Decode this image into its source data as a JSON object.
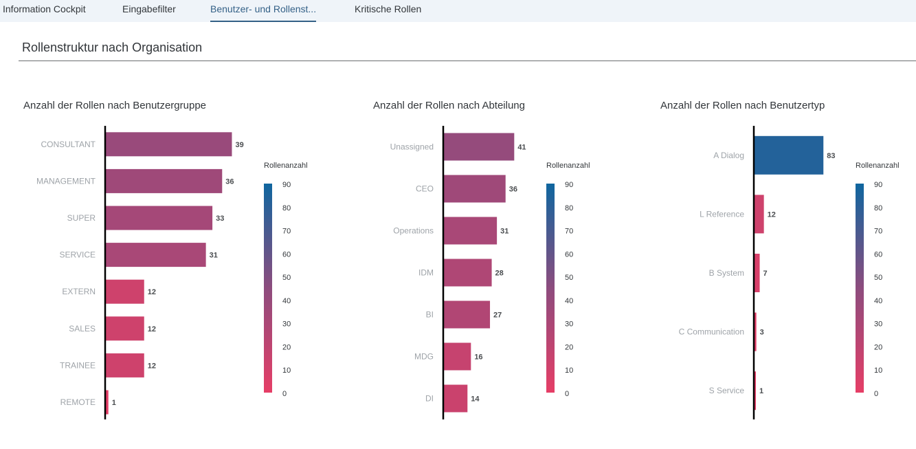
{
  "tabs": [
    {
      "label": "Information Cockpit",
      "active": false
    },
    {
      "label": "Eingabefilter",
      "active": false
    },
    {
      "label": "Benutzer- und Rollenst...",
      "active": true
    },
    {
      "label": "Kritische Rollen",
      "active": false
    }
  ],
  "section": {
    "title": "Rollenstruktur nach Organisation"
  },
  "colors": {
    "active_tab": "#346187",
    "scale_low": "#e63e66",
    "scale_mid": "#8d4c7e",
    "scale_high": "#0f669f"
  },
  "chart_data": [
    {
      "type": "bar",
      "orientation": "horizontal",
      "title": "Anzahl der Rollen nach Benutzergruppe",
      "categories": [
        "CONSULTANT",
        "MANAGEMENT",
        "SUPER",
        "SERVICE",
        "EXTERN",
        "SALES",
        "TRAINEE",
        "REMOTE"
      ],
      "values": [
        39,
        36,
        33,
        31,
        12,
        12,
        12,
        1
      ],
      "xlim": [
        0,
        90
      ],
      "legend": {
        "title": "Rollenanzahl",
        "ticks": [
          0,
          10,
          20,
          30,
          40,
          50,
          60,
          70,
          80,
          90
        ],
        "placement": "right"
      }
    },
    {
      "type": "bar",
      "orientation": "horizontal",
      "title": "Anzahl der Rollen nach Abteilung",
      "categories": [
        "Unassigned",
        "CEO",
        "Operations",
        "IDM",
        "BI",
        "MDG",
        "DI"
      ],
      "values": [
        41,
        36,
        31,
        28,
        27,
        16,
        14
      ],
      "xlim": [
        0,
        90
      ],
      "legend": {
        "title": "Rollenanzahl",
        "ticks": [
          0,
          10,
          20,
          30,
          40,
          50,
          60,
          70,
          80,
          90
        ],
        "placement": "right"
      }
    },
    {
      "type": "bar",
      "orientation": "horizontal",
      "title": "Anzahl der Rollen nach Benutzertyp",
      "categories": [
        "A Dialog",
        "L Reference",
        "B System",
        "C Communication",
        "S Service"
      ],
      "values": [
        83,
        12,
        7,
        3,
        1
      ],
      "xlim": [
        0,
        90
      ],
      "legend": {
        "title": "Rollenanzahl",
        "ticks": [
          0,
          10,
          20,
          30,
          40,
          50,
          60,
          70,
          80,
          90
        ],
        "placement": "right"
      }
    }
  ]
}
